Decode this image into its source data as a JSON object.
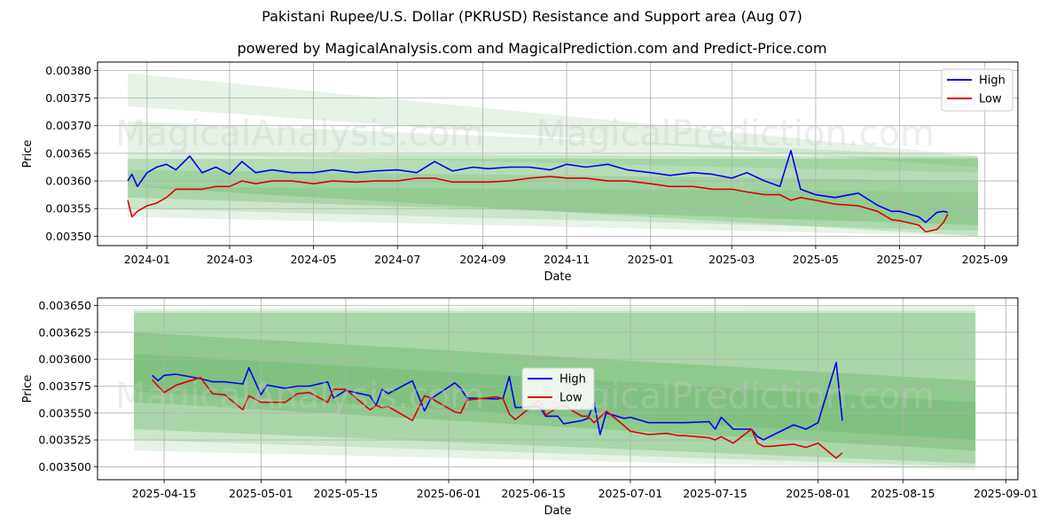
{
  "header": {
    "title": "Pakistani Rupee/U.S. Dollar (PKRUSD) Resistance and Support area (Aug 07)",
    "subtitle": "powered by MagicalAnalysis.com and MagicalPrediction.com and Predict-Price.com"
  },
  "watermarks": [
    "MagicalAnalysis.com",
    "MagicalPrediction.com"
  ],
  "colors": {
    "high": "#0000ee",
    "low": "#dd0000",
    "band": "#2e9b2e",
    "grid": "#b0b0b0"
  },
  "chart_data": [
    {
      "type": "line",
      "xlabel": "Date",
      "ylabel": "Price",
      "x_ticks": [
        "2024-01",
        "2024-03",
        "2024-05",
        "2024-07",
        "2024-09",
        "2024-11",
        "2025-01",
        "2025-03",
        "2025-05",
        "2025-07",
        "2025-09"
      ],
      "y_ticks": [
        "0.00350",
        "0.00355",
        "0.00360",
        "0.00365",
        "0.00370",
        "0.00375",
        "0.00380"
      ],
      "xlim": [
        "2023-11-26",
        "2025-09-25"
      ],
      "ylim": [
        0.003483,
        0.003815
      ],
      "legend": {
        "position": "top-right",
        "entries": [
          "High",
          "Low"
        ]
      },
      "bands": [
        {
          "x": [
            "2023-12-18",
            "2025-08-27"
          ],
          "upper": [
            0.003795,
            0.003645
          ],
          "lower": [
            0.003735,
            0.003625
          ],
          "alpha": 0.12
        },
        {
          "x": [
            "2023-12-18",
            "2025-08-27"
          ],
          "upper": [
            0.003708,
            0.003645
          ],
          "lower": [
            0.00365,
            0.003615
          ],
          "alpha": 0.12
        },
        {
          "x": [
            "2023-12-18",
            "2025-08-27"
          ],
          "upper": [
            0.00365,
            0.003643
          ],
          "lower": [
            0.00359,
            0.0035
          ],
          "alpha": 0.18
        },
        {
          "x": [
            "2023-12-18",
            "2025-08-27"
          ],
          "upper": [
            0.00364,
            0.00364
          ],
          "lower": [
            0.00357,
            0.00352
          ],
          "alpha": 0.2
        },
        {
          "x": [
            "2023-12-18",
            "2025-08-27"
          ],
          "upper": [
            0.00362,
            0.0036
          ],
          "lower": [
            0.00355,
            0.00351
          ],
          "alpha": 0.15
        },
        {
          "x": [
            "2023-12-18",
            "2025-08-27"
          ],
          "upper": [
            0.00359,
            0.00358
          ],
          "lower": [
            0.003535,
            0.0035
          ],
          "alpha": 0.12
        }
      ],
      "series": [
        {
          "name": "High",
          "x": [
            "2023-12-18",
            "2023-12-21",
            "2023-12-25",
            "2024-01-01",
            "2024-01-08",
            "2024-01-15",
            "2024-01-22",
            "2024-02-01",
            "2024-02-10",
            "2024-02-20",
            "2024-03-01",
            "2024-03-10",
            "2024-03-20",
            "2024-04-01",
            "2024-04-15",
            "2024-05-01",
            "2024-05-15",
            "2024-06-01",
            "2024-06-15",
            "2024-07-01",
            "2024-07-15",
            "2024-07-28",
            "2024-08-10",
            "2024-08-25",
            "2024-09-05",
            "2024-09-20",
            "2024-10-05",
            "2024-10-20",
            "2024-11-01",
            "2024-11-15",
            "2024-12-01",
            "2024-12-15",
            "2025-01-01",
            "2025-01-15",
            "2025-02-01",
            "2025-02-15",
            "2025-03-01",
            "2025-03-12",
            "2025-03-25",
            "2025-04-05",
            "2025-04-13",
            "2025-04-20",
            "2025-05-01",
            "2025-05-15",
            "2025-06-01",
            "2025-06-15",
            "2025-06-25",
            "2025-07-01",
            "2025-07-15",
            "2025-07-20",
            "2025-07-28",
            "2025-08-02",
            "2025-08-05"
          ],
          "values": [
            0.0036,
            0.003612,
            0.00359,
            0.003615,
            0.003625,
            0.00363,
            0.00362,
            0.003645,
            0.003615,
            0.003625,
            0.003612,
            0.003635,
            0.003615,
            0.00362,
            0.003615,
            0.003615,
            0.00362,
            0.003615,
            0.003618,
            0.00362,
            0.003615,
            0.003635,
            0.003618,
            0.003625,
            0.003622,
            0.003625,
            0.003625,
            0.00362,
            0.00363,
            0.003625,
            0.00363,
            0.00362,
            0.003615,
            0.00361,
            0.003615,
            0.003612,
            0.003605,
            0.003615,
            0.0036,
            0.00359,
            0.003655,
            0.003585,
            0.003575,
            0.00357,
            0.003578,
            0.003556,
            0.003545,
            0.003545,
            0.003535,
            0.003525,
            0.003543,
            0.003545,
            0.003543
          ]
        },
        {
          "name": "Low",
          "x": [
            "2023-12-18",
            "2023-12-21",
            "2023-12-25",
            "2024-01-01",
            "2024-01-08",
            "2024-01-15",
            "2024-01-22",
            "2024-02-01",
            "2024-02-10",
            "2024-02-20",
            "2024-03-01",
            "2024-03-10",
            "2024-03-20",
            "2024-04-01",
            "2024-04-15",
            "2024-05-01",
            "2024-05-15",
            "2024-06-01",
            "2024-06-15",
            "2024-07-01",
            "2024-07-15",
            "2024-07-28",
            "2024-08-10",
            "2024-08-25",
            "2024-09-05",
            "2024-09-20",
            "2024-10-05",
            "2024-10-20",
            "2024-11-01",
            "2024-11-15",
            "2024-12-01",
            "2024-12-15",
            "2025-01-01",
            "2025-01-15",
            "2025-02-01",
            "2025-02-15",
            "2025-03-01",
            "2025-03-12",
            "2025-03-25",
            "2025-04-05",
            "2025-04-13",
            "2025-04-20",
            "2025-05-01",
            "2025-05-15",
            "2025-06-01",
            "2025-06-15",
            "2025-06-25",
            "2025-07-01",
            "2025-07-15",
            "2025-07-20",
            "2025-07-28",
            "2025-08-02",
            "2025-08-05"
          ],
          "values": [
            0.003565,
            0.003535,
            0.003545,
            0.003555,
            0.00356,
            0.00357,
            0.003585,
            0.003585,
            0.003585,
            0.00359,
            0.00359,
            0.0036,
            0.003595,
            0.0036,
            0.0036,
            0.003595,
            0.0036,
            0.003598,
            0.0036,
            0.0036,
            0.003605,
            0.003605,
            0.003598,
            0.003598,
            0.003598,
            0.0036,
            0.003605,
            0.003608,
            0.003605,
            0.003605,
            0.0036,
            0.0036,
            0.003595,
            0.00359,
            0.00359,
            0.003585,
            0.003585,
            0.00358,
            0.003575,
            0.003575,
            0.003565,
            0.00357,
            0.003565,
            0.003558,
            0.003555,
            0.003545,
            0.00353,
            0.003528,
            0.00352,
            0.003508,
            0.003512,
            0.003525,
            0.00354
          ]
        }
      ]
    },
    {
      "type": "line",
      "xlabel": "Date",
      "ylabel": "Price",
      "x_ticks": [
        "2025-04-15",
        "2025-05-01",
        "2025-05-15",
        "2025-06-01",
        "2025-06-15",
        "2025-07-01",
        "2025-07-15",
        "2025-08-01",
        "2025-08-15",
        "2025-09-01"
      ],
      "y_ticks": [
        "0.003500",
        "0.003525",
        "0.003550",
        "0.003575",
        "0.003600",
        "0.003625",
        "0.003650"
      ],
      "xlim": [
        "2025-04-04",
        "2025-09-03"
      ],
      "ylim": [
        0.003488,
        0.003657
      ],
      "legend": {
        "position": "center",
        "entries": [
          "High",
          "Low"
        ]
      },
      "bands": [
        {
          "x": [
            "2025-04-10",
            "2025-08-27"
          ],
          "upper": [
            0.003647,
            0.00365
          ],
          "lower": [
            0.003515,
            0.003497
          ],
          "alpha": 0.12
        },
        {
          "x": [
            "2025-04-10",
            "2025-08-27"
          ],
          "upper": [
            0.003645,
            0.003645
          ],
          "lower": [
            0.003525,
            0.0035
          ],
          "alpha": 0.15
        },
        {
          "x": [
            "2025-04-10",
            "2025-08-27"
          ],
          "upper": [
            0.003643,
            0.003643
          ],
          "lower": [
            0.003535,
            0.003503
          ],
          "alpha": 0.2
        },
        {
          "x": [
            "2025-04-10",
            "2025-08-27"
          ],
          "upper": [
            0.003625,
            0.00358
          ],
          "lower": [
            0.00356,
            0.003515
          ],
          "alpha": 0.22
        },
        {
          "x": [
            "2025-04-10",
            "2025-08-27"
          ],
          "upper": [
            0.003605,
            0.00356
          ],
          "lower": [
            0.00357,
            0.003525
          ],
          "alpha": 0.15
        }
      ],
      "series": [
        {
          "name": "High",
          "x": [
            "2025-04-13",
            "2025-04-14",
            "2025-04-15",
            "2025-04-17",
            "2025-04-21",
            "2025-04-23",
            "2025-04-25",
            "2025-04-28",
            "2025-04-29",
            "2025-05-01",
            "2025-05-02",
            "2025-05-05",
            "2025-05-07",
            "2025-05-09",
            "2025-05-12",
            "2025-05-13",
            "2025-05-15",
            "2025-05-19",
            "2025-05-20",
            "2025-05-21",
            "2025-05-22",
            "2025-05-26",
            "2025-05-28",
            "2025-05-29",
            "2025-06-02",
            "2025-06-03",
            "2025-06-04",
            "2025-06-09",
            "2025-06-10",
            "2025-06-11",
            "2025-06-12",
            "2025-06-16",
            "2025-06-17",
            "2025-06-19",
            "2025-06-20",
            "2025-06-23",
            "2025-06-24",
            "2025-06-25",
            "2025-06-26",
            "2025-06-27",
            "2025-06-30",
            "2025-07-01",
            "2025-07-04",
            "2025-07-07",
            "2025-07-08",
            "2025-07-09",
            "2025-07-10",
            "2025-07-14",
            "2025-07-15",
            "2025-07-16",
            "2025-07-18",
            "2025-07-21",
            "2025-07-22",
            "2025-07-23",
            "2025-07-24",
            "2025-07-28",
            "2025-07-30",
            "2025-08-01",
            "2025-08-04",
            "2025-08-05"
          ],
          "values": [
            0.003585,
            0.00358,
            0.003585,
            0.003586,
            0.003582,
            0.003579,
            0.003579,
            0.003577,
            0.003592,
            0.003567,
            0.003576,
            0.003573,
            0.003575,
            0.003575,
            0.003579,
            0.003564,
            0.003571,
            0.003566,
            0.003557,
            0.003572,
            0.003568,
            0.00358,
            0.003552,
            0.003563,
            0.003578,
            0.003573,
            0.003564,
            0.003563,
            0.003564,
            0.003584,
            0.003555,
            0.003556,
            0.003547,
            0.003547,
            0.00354,
            0.003543,
            0.003545,
            0.00356,
            0.00353,
            0.00355,
            0.003545,
            0.003546,
            0.003541,
            0.003541,
            0.003541,
            0.003541,
            0.003541,
            0.003542,
            0.003535,
            0.003546,
            0.003535,
            0.003535,
            0.003528,
            0.003525,
            0.003528,
            0.003539,
            0.003535,
            0.003541,
            0.003597,
            0.003543
          ]
        },
        {
          "name": "Low",
          "x": [
            "2025-04-13",
            "2025-04-14",
            "2025-04-15",
            "2025-04-17",
            "2025-04-21",
            "2025-04-23",
            "2025-04-25",
            "2025-04-28",
            "2025-04-29",
            "2025-05-01",
            "2025-05-02",
            "2025-05-05",
            "2025-05-07",
            "2025-05-09",
            "2025-05-12",
            "2025-05-13",
            "2025-05-15",
            "2025-05-19",
            "2025-05-20",
            "2025-05-21",
            "2025-05-22",
            "2025-05-26",
            "2025-05-28",
            "2025-05-29",
            "2025-06-02",
            "2025-06-03",
            "2025-06-04",
            "2025-06-09",
            "2025-06-10",
            "2025-06-11",
            "2025-06-12",
            "2025-06-16",
            "2025-06-17",
            "2025-06-19",
            "2025-06-20",
            "2025-06-23",
            "2025-06-24",
            "2025-06-25",
            "2025-06-26",
            "2025-06-27",
            "2025-06-30",
            "2025-07-01",
            "2025-07-04",
            "2025-07-07",
            "2025-07-08",
            "2025-07-09",
            "2025-07-10",
            "2025-07-14",
            "2025-07-15",
            "2025-07-16",
            "2025-07-18",
            "2025-07-21",
            "2025-07-22",
            "2025-07-23",
            "2025-07-24",
            "2025-07-28",
            "2025-07-30",
            "2025-08-01",
            "2025-08-04",
            "2025-08-05"
          ],
          "values": [
            0.003581,
            0.003575,
            0.003569,
            0.003576,
            0.003583,
            0.003568,
            0.003567,
            0.003553,
            0.003566,
            0.00356,
            0.00356,
            0.00356,
            0.003568,
            0.003569,
            0.00356,
            0.003572,
            0.003572,
            0.003553,
            0.003557,
            0.003555,
            0.003556,
            0.003543,
            0.003566,
            0.003564,
            0.003551,
            0.00355,
            0.003562,
            0.003565,
            0.003563,
            0.003549,
            0.003544,
            0.003562,
            0.003548,
            0.003555,
            0.003557,
            0.003547,
            0.003547,
            0.003541,
            0.003546,
            0.003552,
            0.003538,
            0.003533,
            0.00353,
            0.003531,
            0.00353,
            0.003529,
            0.003529,
            0.003527,
            0.003525,
            0.003528,
            0.003522,
            0.003535,
            0.003522,
            0.003519,
            0.003519,
            0.003521,
            0.003518,
            0.003522,
            0.003508,
            0.003513
          ]
        }
      ]
    }
  ]
}
